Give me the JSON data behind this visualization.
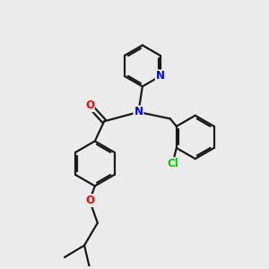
{
  "bg_color": "#ebebeb",
  "bond_color": "#1a1a1a",
  "bond_width": 1.6,
  "atom_colors": {
    "N": "#0000ff",
    "O": "#ff0000",
    "Cl": "#00cc00",
    "C": "#1a1a1a"
  },
  "font_size": 8.5,
  "figsize": [
    3.0,
    3.0
  ],
  "dpi": 100
}
